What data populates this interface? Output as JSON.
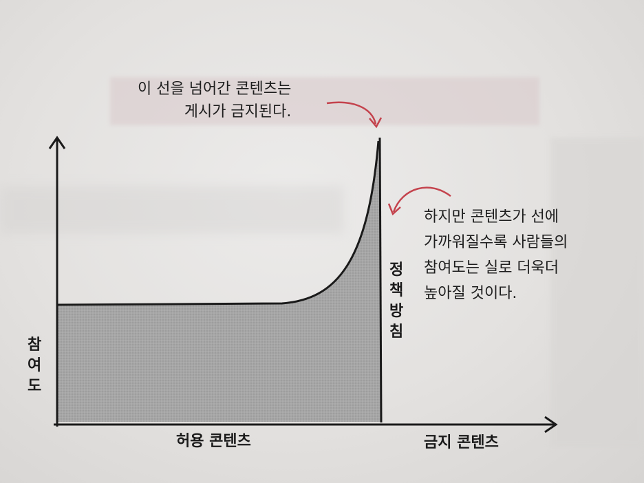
{
  "annotations": {
    "top": "이 선을 넘어간 콘텐츠는\n게시가 금지된다.",
    "right": "하지만 콘텐츠가 선에\n가까워질수록 사람들의\n참여도는 실로 더욱더\n높아질 것이다."
  },
  "labels": {
    "y_axis": "참\n여\n도",
    "policy_line": "정\n책\n방\n침",
    "x_allowed": "허용 콘텐츠",
    "x_forbidden": "금지 콘텐츠"
  },
  "colors": {
    "arrow_accent": "#c4434d",
    "fill": "#a9a9a9",
    "line": "#1a1a1a"
  }
}
